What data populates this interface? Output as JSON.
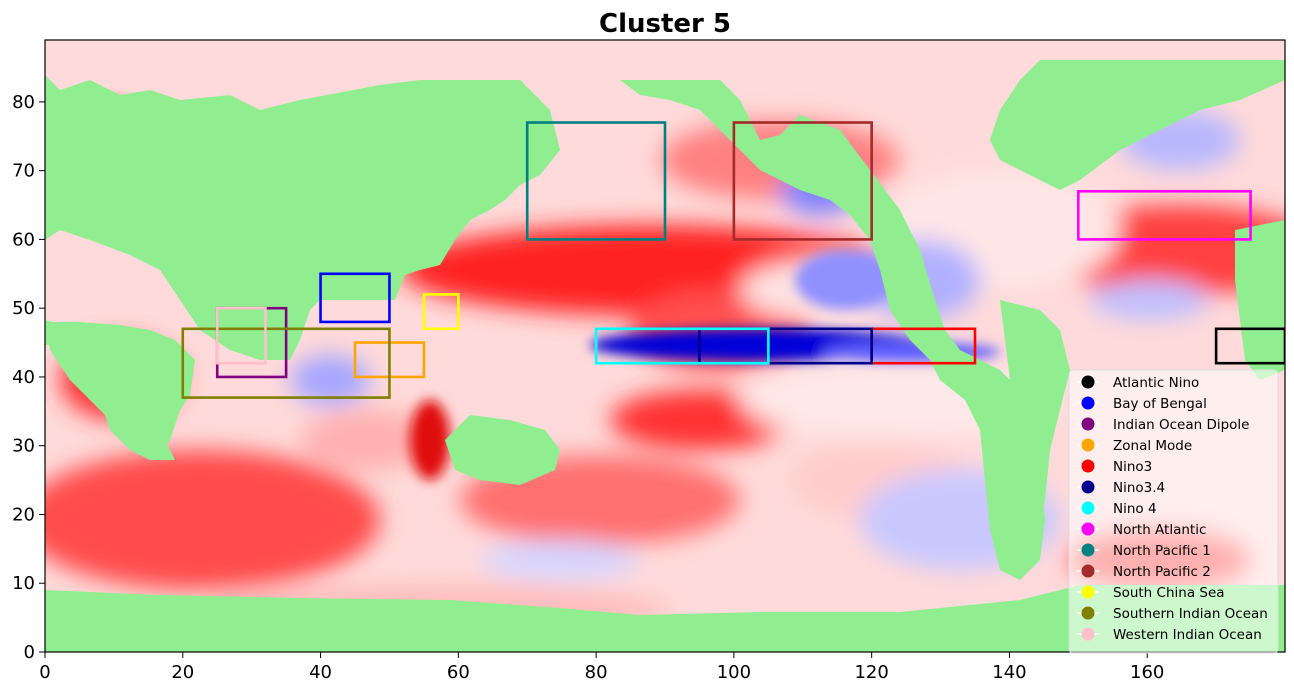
{
  "chart_data": {
    "type": "heatmap",
    "title": "Cluster 5",
    "xlabel": "",
    "ylabel": "",
    "xlim": [
      0,
      180
    ],
    "ylim": [
      0,
      89
    ],
    "xticks": [
      0,
      20,
      40,
      60,
      80,
      100,
      120,
      140,
      160
    ],
    "yticks": [
      0,
      10,
      20,
      30,
      40,
      50,
      60,
      70,
      80
    ],
    "colormap": "bwr",
    "land_color": "#90ee90",
    "legend_position": "lower-right",
    "regions": [
      {
        "name": "Atlantic Nino",
        "color": "#000000",
        "x": [
          170,
          180
        ],
        "y": [
          42,
          47
        ]
      },
      {
        "name": "Bay of Bengal",
        "color": "#0000ff",
        "x": [
          40,
          50
        ],
        "y": [
          48,
          55
        ]
      },
      {
        "name": "Indian Ocean Dipole",
        "color": "#800080",
        "x": [
          25,
          35
        ],
        "y": [
          40,
          50
        ]
      },
      {
        "name": "Zonal Mode",
        "color": "#ffa500",
        "x": [
          45,
          55
        ],
        "y": [
          40,
          45
        ]
      },
      {
        "name": "Nino3",
        "color": "#ff0000",
        "x": [
          120,
          135
        ],
        "y": [
          42,
          47
        ]
      },
      {
        "name": "Nino3.4",
        "color": "#00008b",
        "x": [
          95,
          120
        ],
        "y": [
          42,
          47
        ]
      },
      {
        "name": "Nino 4",
        "color": "#00ffff",
        "x": [
          80,
          105
        ],
        "y": [
          42,
          47
        ]
      },
      {
        "name": "North Atlantic",
        "color": "#ff00ff",
        "x": [
          150,
          175
        ],
        "y": [
          60,
          67
        ]
      },
      {
        "name": "North Pacific 1",
        "color": "#008080",
        "x": [
          70,
          90
        ],
        "y": [
          60,
          77
        ]
      },
      {
        "name": "North Pacific 2",
        "color": "#a52a2a",
        "x": [
          100,
          120
        ],
        "y": [
          60,
          77
        ]
      },
      {
        "name": "South China Sea",
        "color": "#ffff00",
        "x": [
          55,
          60
        ],
        "y": [
          47,
          52
        ]
      },
      {
        "name": "Southern Indian Ocean",
        "color": "#808000",
        "x": [
          20,
          50
        ],
        "y": [
          37,
          47
        ]
      },
      {
        "name": "Western Indian Ocean",
        "color": "#ffc0cb",
        "x": [
          25,
          32
        ],
        "y": [
          42,
          50
        ]
      }
    ]
  }
}
